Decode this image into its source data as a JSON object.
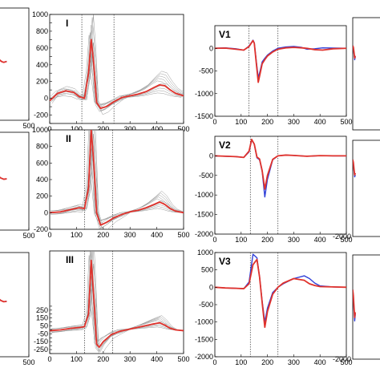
{
  "chart_data": [
    {
      "type": "line",
      "panel": "left-row1-partial",
      "xlim": [
        0,
        500
      ],
      "ylim": [
        -1500,
        1000
      ],
      "x_ticks": [
        0,
        500
      ],
      "y_ticks": [],
      "x_tick_labels": [
        "00",
        "500"
      ],
      "dotted_x": [],
      "series": [
        {
          "color": "#2f3fd8",
          "x": [
            0,
            20,
            40,
            60,
            80,
            100,
            120,
            140,
            160,
            180,
            200
          ],
          "y": [
            0,
            -20,
            -60,
            -90,
            -120,
            -150,
            -180,
            -200,
            -210,
            -200,
            -190
          ]
        },
        {
          "color": "#e0322c",
          "x": [
            0,
            20,
            40,
            60,
            80,
            100,
            120,
            140,
            160,
            180,
            200
          ],
          "y": [
            0,
            -20,
            -60,
            -90,
            -120,
            -150,
            -180,
            -200,
            -210,
            -200,
            -190
          ]
        }
      ]
    },
    {
      "type": "line",
      "panel": "I",
      "lead": "I",
      "xlim": [
        0,
        500
      ],
      "ylim": [
        -300,
        1000
      ],
      "x_ticks": [
        0,
        100,
        200,
        300,
        400,
        500
      ],
      "y_ticks": [
        -300,
        -200,
        -100,
        0,
        100,
        200,
        300,
        400,
        500,
        600,
        700,
        800,
        900,
        1000
      ],
      "y_tick_labels": [
        "",
        "-200",
        "",
        "0",
        "",
        "200",
        "",
        "400",
        "",
        "600",
        "",
        "800",
        "",
        "1000"
      ],
      "dotted_x": [
        120,
        240
      ],
      "series": [
        {
          "color": "#e0322c",
          "x": [
            0,
            30,
            60,
            90,
            110,
            130,
            145,
            155,
            165,
            175,
            190,
            210,
            240,
            270,
            300,
            330,
            360,
            390,
            410,
            430,
            450,
            470,
            500
          ],
          "y": [
            -30,
            60,
            90,
            70,
            20,
            0,
            300,
            700,
            400,
            -50,
            -120,
            -100,
            -40,
            10,
            30,
            50,
            80,
            130,
            160,
            150,
            100,
            60,
            30
          ]
        }
      ],
      "gray_count": 10
    },
    {
      "type": "line",
      "panel": "V1",
      "lead": "V1",
      "xlim": [
        0,
        500
      ],
      "ylim": [
        -1500,
        500
      ],
      "x_ticks": [
        0,
        100,
        200,
        300,
        400,
        500
      ],
      "y_ticks": [
        -1500,
        -1000,
        -500,
        0
      ],
      "y_tick_labels": [
        "-1500",
        "-1000",
        "-500",
        "0"
      ],
      "dotted_x": [
        130,
        240
      ],
      "series": [
        {
          "color": "#2f3fd8",
          "x": [
            0,
            40,
            80,
            110,
            130,
            145,
            150,
            158,
            165,
            172,
            180,
            190,
            200,
            220,
            240,
            270,
            300,
            330,
            350,
            380,
            410,
            450,
            500
          ],
          "y": [
            0,
            10,
            -10,
            -40,
            50,
            180,
            120,
            -300,
            -650,
            -500,
            -300,
            -220,
            -150,
            -60,
            0,
            30,
            40,
            20,
            -20,
            -10,
            10,
            5,
            0
          ]
        },
        {
          "color": "#e0322c",
          "x": [
            0,
            40,
            80,
            110,
            130,
            145,
            150,
            158,
            165,
            172,
            180,
            190,
            200,
            220,
            240,
            270,
            300,
            330,
            350,
            380,
            410,
            450,
            500
          ],
          "y": [
            0,
            5,
            -20,
            -40,
            40,
            170,
            110,
            -350,
            -750,
            -560,
            -340,
            -250,
            -170,
            -80,
            -20,
            10,
            20,
            10,
            0,
            -30,
            -40,
            -10,
            0
          ]
        }
      ]
    },
    {
      "type": "line",
      "panel": "right-row1-partial",
      "xlim": [
        0,
        500
      ],
      "ylim": [
        -1500,
        500
      ],
      "y_ticks": [],
      "series": [
        {
          "color": "#2f3fd8",
          "x": [
            0,
            10,
            20,
            30,
            40
          ],
          "y": [
            0,
            -40,
            -150,
            -250,
            -200
          ]
        },
        {
          "color": "#e0322c",
          "x": [
            0,
            10,
            20,
            30,
            40
          ],
          "y": [
            0,
            -30,
            -120,
            -220,
            -180
          ]
        }
      ]
    },
    {
      "type": "line",
      "panel": "left-row2-partial",
      "xlim": [
        0,
        500
      ],
      "ylim": [
        -1500,
        1000
      ],
      "x_ticks": [
        0,
        500
      ],
      "x_tick_labels": [
        "00",
        "500"
      ],
      "series": [
        {
          "color": "#2f3fd8",
          "x": [
            0,
            40,
            80,
            120,
            160,
            200
          ],
          "y": [
            0,
            -40,
            -110,
            -170,
            -200,
            -190
          ]
        },
        {
          "color": "#e0322c",
          "x": [
            0,
            40,
            80,
            120,
            160,
            200
          ],
          "y": [
            0,
            -40,
            -110,
            -170,
            -200,
            -190
          ]
        }
      ]
    },
    {
      "type": "line",
      "panel": "II",
      "lead": "II",
      "xlim": [
        0,
        500
      ],
      "ylim": [
        -200,
        1000
      ],
      "x_ticks": [
        0,
        100,
        200,
        300,
        400,
        500
      ],
      "y_ticks": [
        -200,
        0,
        200,
        400,
        600,
        800,
        1000
      ],
      "y_tick_labels": [
        "-200",
        "0",
        "200",
        "400",
        "600",
        "800",
        "1000"
      ],
      "dotted_x": [
        130,
        235
      ],
      "series": [
        {
          "color": "#e0322c",
          "x": [
            0,
            40,
            80,
            110,
            130,
            145,
            155,
            165,
            175,
            190,
            210,
            240,
            270,
            300,
            330,
            360,
            390,
            410,
            430,
            450,
            470,
            500
          ],
          "y": [
            0,
            10,
            40,
            60,
            50,
            300,
            1000,
            600,
            0,
            -150,
            -120,
            -60,
            -20,
            10,
            30,
            60,
            100,
            130,
            100,
            50,
            20,
            0
          ]
        }
      ],
      "gray_count": 10
    },
    {
      "type": "line",
      "panel": "V2",
      "lead": "V2",
      "xlim": [
        0,
        500
      ],
      "ylim": [
        -2000,
        500
      ],
      "x_ticks": [
        0,
        100,
        200,
        300,
        400,
        500
      ],
      "y_ticks": [
        -2000,
        -1500,
        -1000,
        -500,
        0
      ],
      "y_tick_labels": [
        "-2000",
        "-1500",
        "-1000",
        "-500",
        "0"
      ],
      "dotted_x": [
        135,
        240
      ],
      "series": [
        {
          "color": "#2f3fd8",
          "x": [
            0,
            40,
            80,
            110,
            130,
            140,
            150,
            160,
            170,
            180,
            190,
            200,
            220,
            240,
            270,
            300,
            350,
            400,
            450,
            500
          ],
          "y": [
            0,
            -10,
            -20,
            -40,
            100,
            400,
            300,
            -50,
            -100,
            -400,
            -1050,
            -600,
            -100,
            0,
            20,
            10,
            -10,
            5,
            0,
            0
          ]
        },
        {
          "color": "#e0322c",
          "x": [
            0,
            40,
            80,
            110,
            130,
            140,
            150,
            160,
            170,
            180,
            190,
            200,
            220,
            240,
            270,
            300,
            350,
            400,
            450,
            500
          ],
          "y": [
            0,
            -10,
            -20,
            -40,
            120,
            420,
            300,
            -30,
            -80,
            -380,
            -850,
            -500,
            -90,
            0,
            20,
            10,
            -10,
            5,
            0,
            0
          ]
        }
      ]
    },
    {
      "type": "line",
      "panel": "right-row2-partial",
      "xlim": [
        0,
        500
      ],
      "ylim": [
        -2000,
        500
      ],
      "y_tick_labels": [
        "-2000"
      ],
      "series": [
        {
          "color": "#2f3fd8",
          "x": [
            0,
            10,
            20,
            30,
            40
          ],
          "y": [
            0,
            -100,
            -300,
            -450,
            -400
          ]
        },
        {
          "color": "#e0322c",
          "x": [
            0,
            10,
            20,
            30,
            40
          ],
          "y": [
            0,
            -80,
            -250,
            -400,
            -350
          ]
        }
      ]
    },
    {
      "type": "line",
      "panel": "left-row3-partial",
      "xlim": [
        0,
        500
      ],
      "ylim": [
        -1500,
        1000
      ],
      "x_ticks": [
        0,
        500
      ],
      "x_tick_labels": [
        "00",
        "500"
      ],
      "series": [
        {
          "color": "#2f3fd8",
          "x": [
            0,
            40,
            80,
            120,
            160,
            200
          ],
          "y": [
            0,
            -30,
            -90,
            -150,
            -180,
            -170
          ]
        },
        {
          "color": "#e0322c",
          "x": [
            0,
            40,
            80,
            120,
            160,
            200
          ],
          "y": [
            0,
            -30,
            -90,
            -150,
            -180,
            -170
          ]
        }
      ]
    },
    {
      "type": "line",
      "panel": "III",
      "lead": "III",
      "xlim": [
        0,
        500
      ],
      "ylim": [
        -300,
        1000
      ],
      "x_ticks": [
        0,
        100,
        200,
        300,
        400,
        500
      ],
      "y_ticks": [
        -300,
        -250,
        -200,
        -150,
        -100,
        -50,
        0,
        50,
        100,
        150,
        200,
        250,
        300
      ],
      "y_tick_labels": [
        "",
        "-250",
        "",
        "-150",
        "",
        "-50",
        "",
        "50",
        "",
        "150",
        "",
        "250",
        ""
      ],
      "dotted_x": [
        130,
        235
      ],
      "series": [
        {
          "color": "#e0322c",
          "x": [
            0,
            40,
            80,
            110,
            130,
            145,
            155,
            165,
            175,
            185,
            200,
            230,
            260,
            300,
            340,
            380,
            410,
            430,
            450,
            470,
            500
          ],
          "y": [
            -10,
            0,
            20,
            30,
            40,
            200,
            880,
            400,
            -180,
            -220,
            -150,
            -60,
            -20,
            10,
            40,
            70,
            90,
            60,
            20,
            0,
            -10
          ]
        }
      ],
      "gray_count": 10
    },
    {
      "type": "line",
      "panel": "V3",
      "lead": "V3",
      "xlim": [
        0,
        500
      ],
      "ylim": [
        -2000,
        1000
      ],
      "x_ticks": [
        0,
        100,
        200,
        300,
        400,
        500
      ],
      "y_ticks": [
        -2000,
        -1500,
        -1000,
        -500,
        0,
        500,
        1000
      ],
      "y_tick_labels": [
        "-2000",
        "-1500",
        "-1000",
        "-500",
        "0",
        "500",
        "1000"
      ],
      "dotted_x": [
        135,
        240
      ],
      "series": [
        {
          "color": "#2f3fd8",
          "x": [
            0,
            40,
            80,
            110,
            130,
            145,
            160,
            170,
            180,
            190,
            200,
            220,
            240,
            260,
            300,
            340,
            360,
            380,
            400,
            450,
            500
          ],
          "y": [
            0,
            -20,
            -30,
            -40,
            150,
            950,
            850,
            300,
            -400,
            -1000,
            -600,
            -150,
            0,
            100,
            250,
            330,
            250,
            120,
            40,
            10,
            0
          ]
        },
        {
          "color": "#e0322c",
          "x": [
            0,
            40,
            80,
            110,
            130,
            145,
            160,
            170,
            180,
            190,
            200,
            220,
            240,
            260,
            300,
            340,
            360,
            380,
            400,
            450,
            500
          ],
          "y": [
            0,
            -20,
            -30,
            -40,
            100,
            650,
            800,
            300,
            -450,
            -1150,
            -700,
            -200,
            0,
            120,
            250,
            200,
            100,
            50,
            20,
            10,
            0
          ]
        }
      ]
    },
    {
      "type": "line",
      "panel": "right-row3-partial",
      "xlim": [
        0,
        500
      ],
      "ylim": [
        -2000,
        1000
      ],
      "y_tick_labels": [
        "-2000"
      ],
      "series": [
        {
          "color": "#2f3fd8",
          "x": [
            0,
            10,
            20,
            30,
            40
          ],
          "y": [
            0,
            -200,
            -600,
            -900,
            -700
          ]
        },
        {
          "color": "#e0322c",
          "x": [
            0,
            10,
            20,
            30,
            40
          ],
          "y": [
            0,
            -180,
            -500,
            -800,
            -650
          ]
        }
      ]
    }
  ]
}
